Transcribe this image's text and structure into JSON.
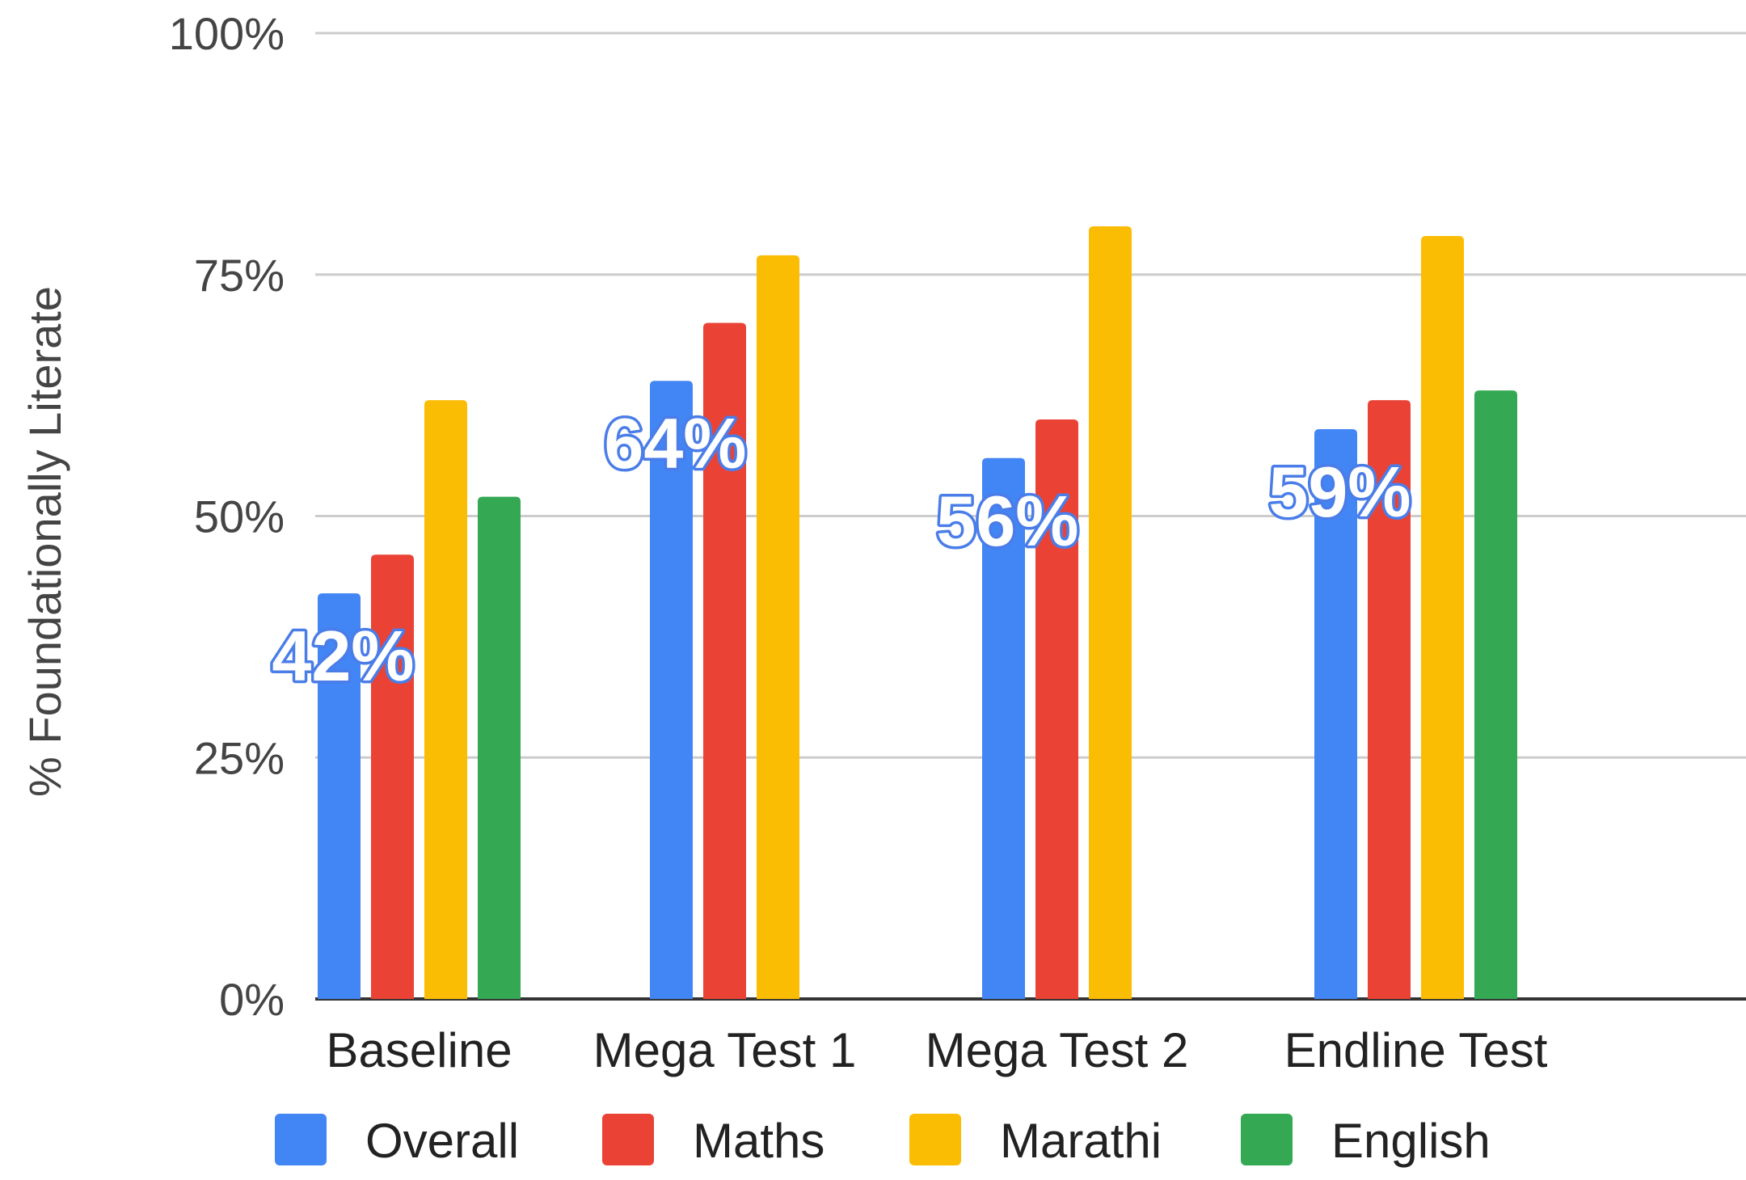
{
  "chart_data": {
    "type": "bar",
    "title": "",
    "xlabel": "",
    "ylabel": "% Foundationally Literate",
    "categories": [
      "Baseline",
      "Mega Test 1",
      "Mega Test 2",
      "Endline Test"
    ],
    "series": [
      {
        "name": "Overall",
        "color": "#4285f4",
        "values": [
          42,
          64,
          56,
          59
        ]
      },
      {
        "name": "Maths",
        "color": "#ea4335",
        "values": [
          46,
          70,
          60,
          62
        ]
      },
      {
        "name": "Marathi",
        "color": "#fbbc04",
        "values": [
          62,
          77,
          80,
          79
        ]
      },
      {
        "name": "English",
        "color": "#34a853",
        "values": [
          52,
          null,
          null,
          63
        ]
      }
    ],
    "data_labels": {
      "series": "Overall",
      "labels": [
        "42%",
        "64%",
        "56%",
        "59%"
      ]
    },
    "ylim": [
      0,
      100
    ],
    "yticks": [
      0,
      25,
      50,
      75,
      100
    ],
    "ytick_labels": [
      "0%",
      "25%",
      "50%",
      "75%",
      "100%"
    ],
    "grid": true,
    "legend": {
      "position": "bottom",
      "entries": [
        "Overall",
        "Maths",
        "Marathi",
        "English"
      ]
    }
  }
}
